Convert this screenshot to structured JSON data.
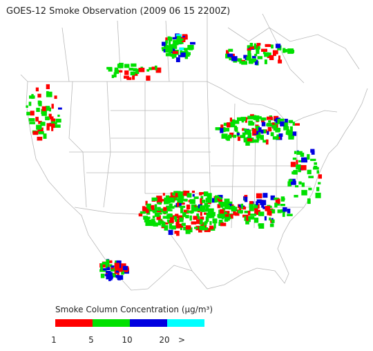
{
  "title": "GOES-12 Smoke Observation (2009 06 15  2200Z)",
  "legend": {
    "label": "Smoke Column Concentration (μg/m³)",
    "bins": [
      {
        "color": "#ff0000"
      },
      {
        "color": "#00e000"
      },
      {
        "color": "#0000e0"
      },
      {
        "color": "#00ffff"
      }
    ],
    "ticks": [
      "1",
      "5",
      "10",
      "20",
      ">"
    ]
  }
}
